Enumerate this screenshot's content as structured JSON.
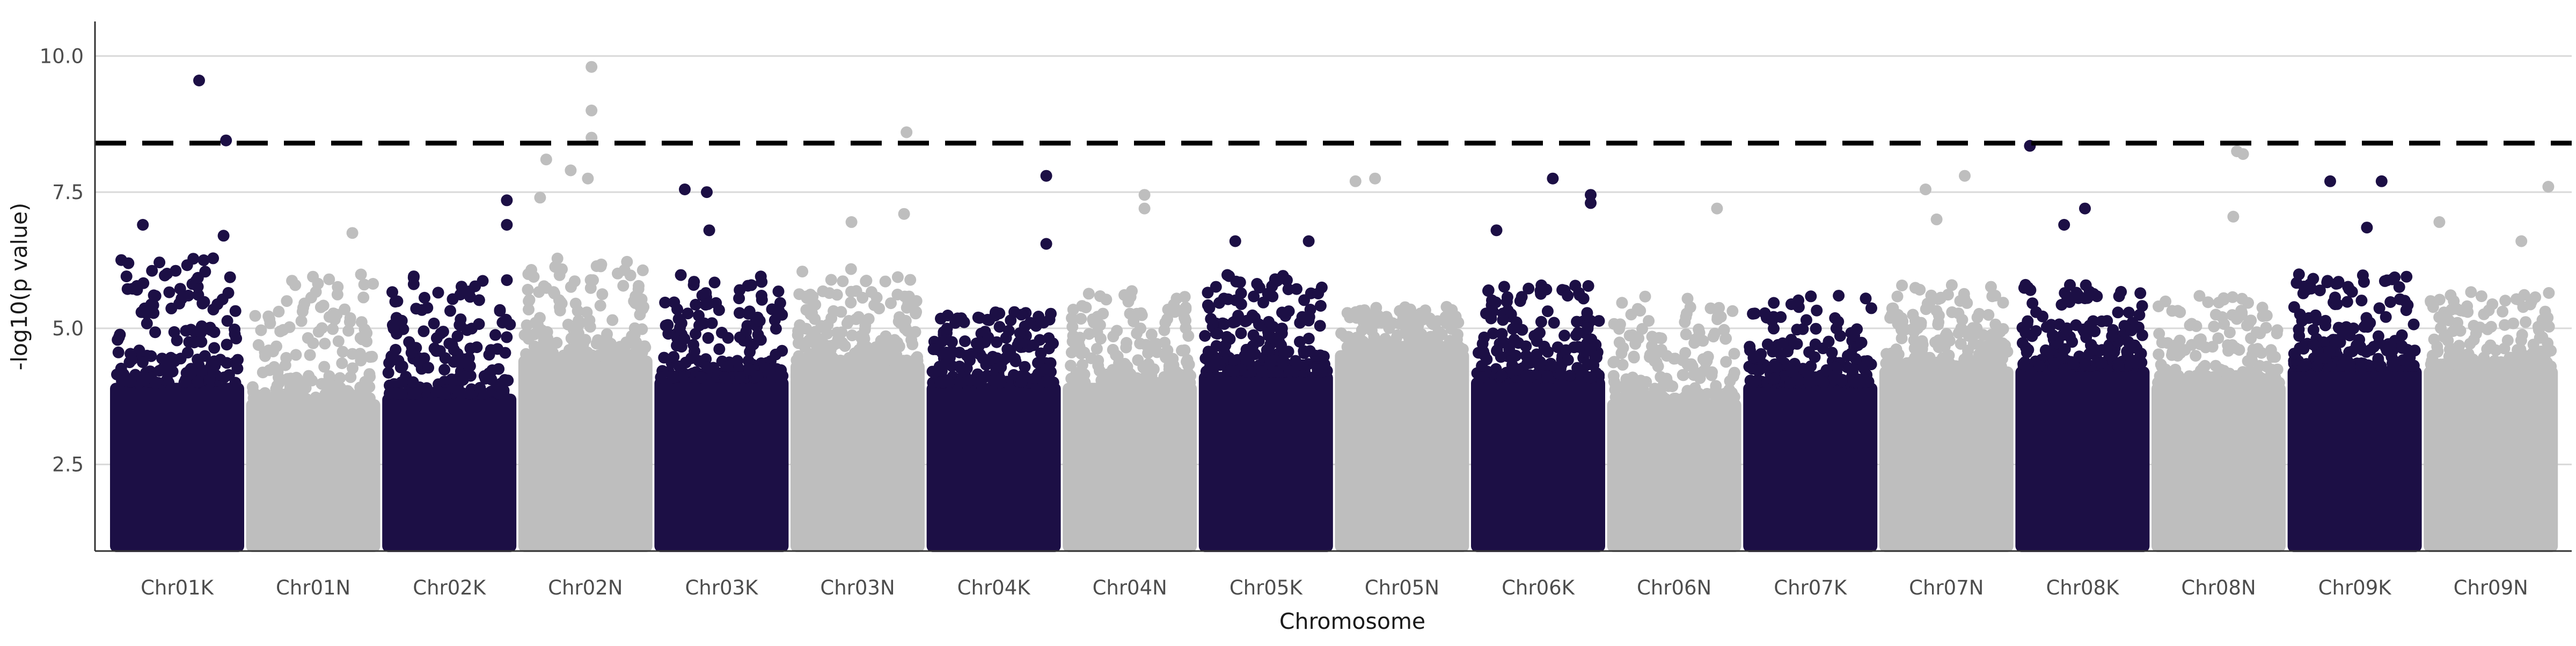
{
  "chart_data": {
    "type": "scatter",
    "subtype": "manhattan",
    "title": "",
    "xlabel": "Chromosome",
    "ylabel": "-log10(p value)",
    "ylim": [
      1,
      10.5
    ],
    "yticks": [
      2.5,
      5.0,
      7.5,
      10.0
    ],
    "ytick_labels": [
      "2.5",
      "5.0",
      "7.5",
      "10.0"
    ],
    "grid": "horizontal major lines only",
    "legend": "none",
    "significance_threshold": {
      "value": 8.4,
      "style": "dashed",
      "color": "#000000"
    },
    "colors": {
      "odd": "#1c0f45",
      "even": "#bebebe"
    },
    "categories": [
      "Chr01K",
      "Chr01N",
      "Chr02K",
      "Chr02N",
      "Chr03K",
      "Chr03N",
      "Chr04K",
      "Chr04N",
      "Chr05K",
      "Chr05N",
      "Chr06K",
      "Chr06N",
      "Chr07K",
      "Chr07N",
      "Chr08K",
      "Chr08N",
      "Chr09K",
      "Chr09N"
    ],
    "dense_band": [
      {
        "chromosome": "Chr01K",
        "bottom": 1.0,
        "top": 4.0,
        "scatter_max": 6.3
      },
      {
        "chromosome": "Chr01N",
        "bottom": 1.0,
        "top": 3.7,
        "scatter_max": 6.0
      },
      {
        "chromosome": "Chr02K",
        "bottom": 1.0,
        "top": 3.8,
        "scatter_max": 6.1
      },
      {
        "chromosome": "Chr02N",
        "bottom": 1.0,
        "top": 4.5,
        "scatter_max": 6.3
      },
      {
        "chromosome": "Chr03K",
        "bottom": 1.0,
        "top": 4.1,
        "scatter_max": 6.0
      },
      {
        "chromosome": "Chr03N",
        "bottom": 1.0,
        "top": 4.4,
        "scatter_max": 6.1
      },
      {
        "chromosome": "Chr04K",
        "bottom": 1.0,
        "top": 4.0,
        "scatter_max": 5.3
      },
      {
        "chromosome": "Chr04N",
        "bottom": 1.0,
        "top": 4.0,
        "scatter_max": 5.7
      },
      {
        "chromosome": "Chr05K",
        "bottom": 1.0,
        "top": 4.2,
        "scatter_max": 6.0
      },
      {
        "chromosome": "Chr05N",
        "bottom": 1.0,
        "top": 4.6,
        "scatter_max": 5.4
      },
      {
        "chromosome": "Chr06K",
        "bottom": 1.0,
        "top": 4.1,
        "scatter_max": 5.8
      },
      {
        "chromosome": "Chr06N",
        "bottom": 1.0,
        "top": 3.7,
        "scatter_max": 5.6
      },
      {
        "chromosome": "Chr07K",
        "bottom": 1.0,
        "top": 4.0,
        "scatter_max": 5.6
      },
      {
        "chromosome": "Chr07N",
        "bottom": 1.0,
        "top": 4.3,
        "scatter_max": 5.8
      },
      {
        "chromosome": "Chr08K",
        "bottom": 1.0,
        "top": 4.3,
        "scatter_max": 5.8
      },
      {
        "chromosome": "Chr08N",
        "bottom": 1.0,
        "top": 4.0,
        "scatter_max": 5.6
      },
      {
        "chromosome": "Chr09K",
        "bottom": 1.0,
        "top": 4.3,
        "scatter_max": 6.0
      },
      {
        "chromosome": "Chr09N",
        "bottom": 1.0,
        "top": 4.3,
        "scatter_max": 5.7
      }
    ],
    "peaks": [
      {
        "chromosome": "Chr01K",
        "position": 0.68,
        "y": 9.55
      },
      {
        "chromosome": "Chr01K",
        "position": 0.9,
        "y": 8.45
      },
      {
        "chromosome": "Chr01K",
        "position": 0.22,
        "y": 6.9
      },
      {
        "chromosome": "Chr01K",
        "position": 0.88,
        "y": 6.7
      },
      {
        "chromosome": "Chr01N",
        "position": 0.82,
        "y": 6.75
      },
      {
        "chromosome": "Chr02K",
        "position": 0.97,
        "y": 7.35
      },
      {
        "chromosome": "Chr02K",
        "position": 0.97,
        "y": 6.9
      },
      {
        "chromosome": "Chr02N",
        "position": 0.55,
        "y": 9.8
      },
      {
        "chromosome": "Chr02N",
        "position": 0.55,
        "y": 9.0
      },
      {
        "chromosome": "Chr02N",
        "position": 0.55,
        "y": 8.5
      },
      {
        "chromosome": "Chr02N",
        "position": 0.18,
        "y": 8.1
      },
      {
        "chromosome": "Chr02N",
        "position": 0.38,
        "y": 7.9
      },
      {
        "chromosome": "Chr02N",
        "position": 0.52,
        "y": 7.75
      },
      {
        "chromosome": "Chr02N",
        "position": 0.13,
        "y": 7.4
      },
      {
        "chromosome": "Chr03K",
        "position": 0.2,
        "y": 7.55
      },
      {
        "chromosome": "Chr03K",
        "position": 0.38,
        "y": 7.5
      },
      {
        "chromosome": "Chr03K",
        "position": 0.4,
        "y": 6.8
      },
      {
        "chromosome": "Chr03N",
        "position": 0.9,
        "y": 8.6
      },
      {
        "chromosome": "Chr03N",
        "position": 0.88,
        "y": 7.1
      },
      {
        "chromosome": "Chr03N",
        "position": 0.45,
        "y": 6.95
      },
      {
        "chromosome": "Chr04K",
        "position": 0.93,
        "y": 7.8
      },
      {
        "chromosome": "Chr04K",
        "position": 0.93,
        "y": 6.55
      },
      {
        "chromosome": "Chr04N",
        "position": 0.62,
        "y": 7.45
      },
      {
        "chromosome": "Chr04N",
        "position": 0.62,
        "y": 7.2
      },
      {
        "chromosome": "Chr05K",
        "position": 0.25,
        "y": 6.6
      },
      {
        "chromosome": "Chr05K",
        "position": 0.85,
        "y": 6.6
      },
      {
        "chromosome": "Chr05N",
        "position": 0.12,
        "y": 7.7
      },
      {
        "chromosome": "Chr05N",
        "position": 0.28,
        "y": 7.75
      },
      {
        "chromosome": "Chr06K",
        "position": 0.62,
        "y": 7.75
      },
      {
        "chromosome": "Chr06K",
        "position": 0.93,
        "y": 7.45
      },
      {
        "chromosome": "Chr06K",
        "position": 0.93,
        "y": 7.3
      },
      {
        "chromosome": "Chr06K",
        "position": 0.16,
        "y": 6.8
      },
      {
        "chromosome": "Chr06N",
        "position": 0.85,
        "y": 7.2
      },
      {
        "chromosome": "Chr07N",
        "position": 0.33,
        "y": 7.55
      },
      {
        "chromosome": "Chr07N",
        "position": 0.65,
        "y": 7.8
      },
      {
        "chromosome": "Chr07N",
        "position": 0.42,
        "y": 7.0
      },
      {
        "chromosome": "Chr08K",
        "position": 0.07,
        "y": 8.35
      },
      {
        "chromosome": "Chr08K",
        "position": 0.52,
        "y": 7.2
      },
      {
        "chromosome": "Chr08K",
        "position": 0.35,
        "y": 6.9
      },
      {
        "chromosome": "Chr08N",
        "position": 0.65,
        "y": 8.25
      },
      {
        "chromosome": "Chr08N",
        "position": 0.7,
        "y": 8.2
      },
      {
        "chromosome": "Chr08N",
        "position": 0.62,
        "y": 7.05
      },
      {
        "chromosome": "Chr09K",
        "position": 0.3,
        "y": 7.7
      },
      {
        "chromosome": "Chr09K",
        "position": 0.72,
        "y": 7.7
      },
      {
        "chromosome": "Chr09K",
        "position": 0.6,
        "y": 6.85
      },
      {
        "chromosome": "Chr09N",
        "position": 0.97,
        "y": 7.6
      },
      {
        "chromosome": "Chr09N",
        "position": 0.08,
        "y": 6.95
      },
      {
        "chromosome": "Chr09N",
        "position": 0.75,
        "y": 6.6
      }
    ]
  }
}
